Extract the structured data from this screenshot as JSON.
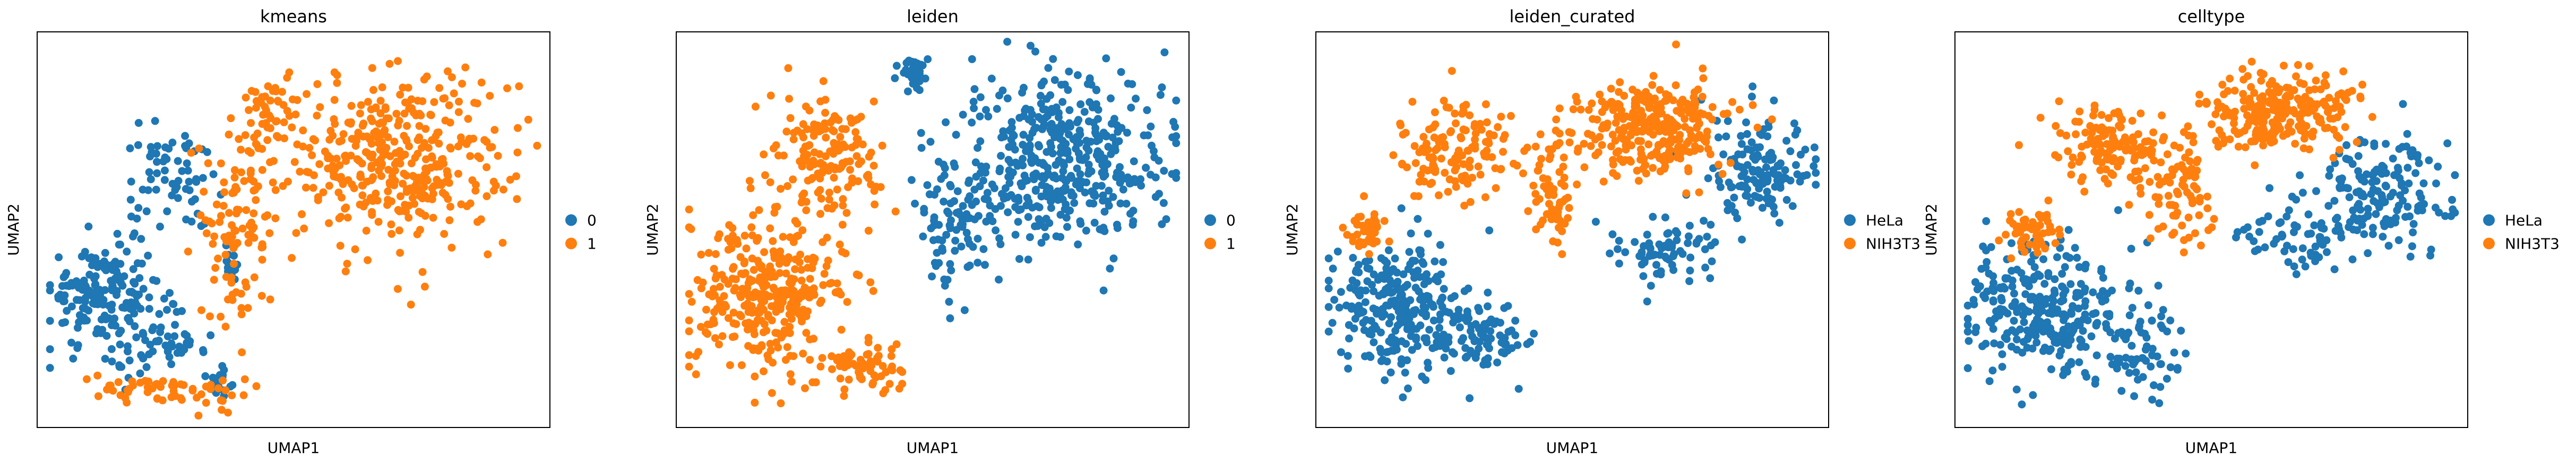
{
  "colors": {
    "blue": "#1f77b4",
    "orange": "#ff7f0e",
    "frame": "#000000",
    "background": "#ffffff"
  },
  "chart_data": [
    {
      "type": "scatter",
      "title": "kmeans",
      "xlabel": "UMAP1",
      "ylabel": "UMAP2",
      "ticks": false,
      "grid": false,
      "xlim": [
        0,
        10
      ],
      "ylim": [
        0,
        10
      ],
      "legend_placement": "right",
      "legend": [
        {
          "label": "0",
          "color": "#1f77b4"
        },
        {
          "label": "1",
          "color": "#ff7f0e"
        }
      ],
      "clusters": [
        {
          "label": "0",
          "color": "#1f77b4",
          "n": 330,
          "blobs": [
            {
              "cx": 1.3,
              "cy": 3.3,
              "rx": 1.1,
              "ry": 1.3,
              "w": 0.55
            },
            {
              "cx": 2.5,
              "cy": 2.1,
              "rx": 0.8,
              "ry": 0.8,
              "w": 0.15
            },
            {
              "cx": 2.6,
              "cy": 6.2,
              "rx": 0.9,
              "ry": 1.4,
              "w": 0.2
            },
            {
              "cx": 3.6,
              "cy": 1.2,
              "rx": 0.4,
              "ry": 0.4,
              "w": 0.05
            },
            {
              "cx": 3.8,
              "cy": 4.1,
              "rx": 0.3,
              "ry": 0.5,
              "w": 0.05
            }
          ]
        },
        {
          "label": "1",
          "color": "#ff7f0e",
          "n": 600,
          "blobs": [
            {
              "cx": 7.0,
              "cy": 6.8,
              "rx": 2.2,
              "ry": 2.2,
              "w": 0.65
            },
            {
              "cx": 4.6,
              "cy": 8.0,
              "rx": 0.6,
              "ry": 1.0,
              "w": 0.08
            },
            {
              "cx": 3.9,
              "cy": 5.0,
              "rx": 0.6,
              "ry": 2.5,
              "w": 0.17
            },
            {
              "cx": 3.3,
              "cy": 0.9,
              "rx": 1.0,
              "ry": 0.5,
              "w": 0.05
            },
            {
              "cx": 2.0,
              "cy": 1.0,
              "rx": 1.0,
              "ry": 0.4,
              "w": 0.05
            }
          ]
        }
      ]
    },
    {
      "type": "scatter",
      "title": "leiden",
      "xlabel": "UMAP1",
      "ylabel": "UMAP2",
      "ticks": false,
      "grid": false,
      "xlim": [
        0,
        10
      ],
      "ylim": [
        0,
        10
      ],
      "legend_placement": "right",
      "legend": [
        {
          "label": "0",
          "color": "#1f77b4"
        },
        {
          "label": "1",
          "color": "#ff7f0e"
        }
      ],
      "clusters": [
        {
          "label": "0",
          "color": "#1f77b4",
          "n": 560,
          "blobs": [
            {
              "cx": 7.5,
              "cy": 6.8,
              "rx": 2.0,
              "ry": 2.2,
              "w": 0.82
            },
            {
              "cx": 5.4,
              "cy": 5.0,
              "rx": 0.6,
              "ry": 2.0,
              "w": 0.13
            },
            {
              "cx": 4.6,
              "cy": 9.0,
              "rx": 0.3,
              "ry": 0.5,
              "w": 0.05
            }
          ]
        },
        {
          "label": "1",
          "color": "#ff7f0e",
          "n": 540,
          "blobs": [
            {
              "cx": 1.8,
              "cy": 3.3,
              "rx": 1.5,
              "ry": 1.9,
              "w": 0.6
            },
            {
              "cx": 2.9,
              "cy": 6.8,
              "rx": 1.1,
              "ry": 1.6,
              "w": 0.28
            },
            {
              "cx": 3.6,
              "cy": 1.5,
              "rx": 0.8,
              "ry": 0.7,
              "w": 0.12
            }
          ]
        }
      ]
    },
    {
      "type": "scatter",
      "title": "leiden_curated",
      "xlabel": "UMAP1",
      "ylabel": "UMAP2",
      "ticks": false,
      "grid": false,
      "xlim": [
        0,
        10
      ],
      "ylim": [
        0,
        10
      ],
      "legend_placement": "right",
      "legend": [
        {
          "label": "HeLa",
          "color": "#1f77b4"
        },
        {
          "label": "NIH3T3",
          "color": "#ff7f0e"
        }
      ],
      "clusters": [
        {
          "label": "HeLa",
          "color": "#1f77b4",
          "n": 560,
          "blobs": [
            {
              "cx": 1.7,
              "cy": 3.0,
              "rx": 1.4,
              "ry": 1.7,
              "w": 0.5
            },
            {
              "cx": 3.4,
              "cy": 2.2,
              "rx": 0.8,
              "ry": 1.0,
              "w": 0.12
            },
            {
              "cx": 8.6,
              "cy": 6.4,
              "rx": 1.1,
              "ry": 1.4,
              "w": 0.25
            },
            {
              "cx": 6.8,
              "cy": 4.5,
              "rx": 1.2,
              "ry": 0.8,
              "w": 0.13
            }
          ]
        },
        {
          "label": "NIH3T3",
          "color": "#ff7f0e",
          "n": 540,
          "blobs": [
            {
              "cx": 2.8,
              "cy": 7.0,
              "rx": 1.1,
              "ry": 1.2,
              "w": 0.25
            },
            {
              "cx": 6.5,
              "cy": 7.5,
              "rx": 1.6,
              "ry": 1.3,
              "w": 0.55
            },
            {
              "cx": 4.6,
              "cy": 6.0,
              "rx": 0.5,
              "ry": 1.4,
              "w": 0.12
            },
            {
              "cx": 1.0,
              "cy": 5.0,
              "rx": 0.4,
              "ry": 0.5,
              "w": 0.08
            }
          ]
        }
      ]
    },
    {
      "type": "scatter",
      "title": "celltype",
      "xlabel": "UMAP1",
      "ylabel": "UMAP2",
      "ticks": false,
      "grid": false,
      "xlim": [
        0,
        10
      ],
      "ylim": [
        0,
        10
      ],
      "legend_placement": "right",
      "legend": [
        {
          "label": "HeLa",
          "color": "#1f77b4"
        },
        {
          "label": "NIH3T3",
          "color": "#ff7f0e"
        }
      ],
      "clusters": [
        {
          "label": "HeLa",
          "color": "#1f77b4",
          "n": 580,
          "blobs": [
            {
              "cx": 1.7,
              "cy": 3.0,
              "rx": 1.4,
              "ry": 1.8,
              "w": 0.5
            },
            {
              "cx": 3.6,
              "cy": 2.0,
              "rx": 0.8,
              "ry": 1.1,
              "w": 0.12
            },
            {
              "cx": 8.3,
              "cy": 6.0,
              "rx": 1.4,
              "ry": 1.5,
              "w": 0.28
            },
            {
              "cx": 6.6,
              "cy": 4.8,
              "rx": 1.0,
              "ry": 0.9,
              "w": 0.1
            }
          ]
        },
        {
          "label": "NIH3T3",
          "color": "#ff7f0e",
          "n": 520,
          "blobs": [
            {
              "cx": 3.0,
              "cy": 7.2,
              "rx": 1.1,
              "ry": 1.1,
              "w": 0.25
            },
            {
              "cx": 6.4,
              "cy": 8.0,
              "rx": 1.5,
              "ry": 1.0,
              "w": 0.5
            },
            {
              "cx": 4.4,
              "cy": 6.0,
              "rx": 0.6,
              "ry": 1.5,
              "w": 0.15
            },
            {
              "cx": 1.5,
              "cy": 5.0,
              "rx": 0.5,
              "ry": 0.6,
              "w": 0.1
            }
          ]
        }
      ]
    }
  ]
}
